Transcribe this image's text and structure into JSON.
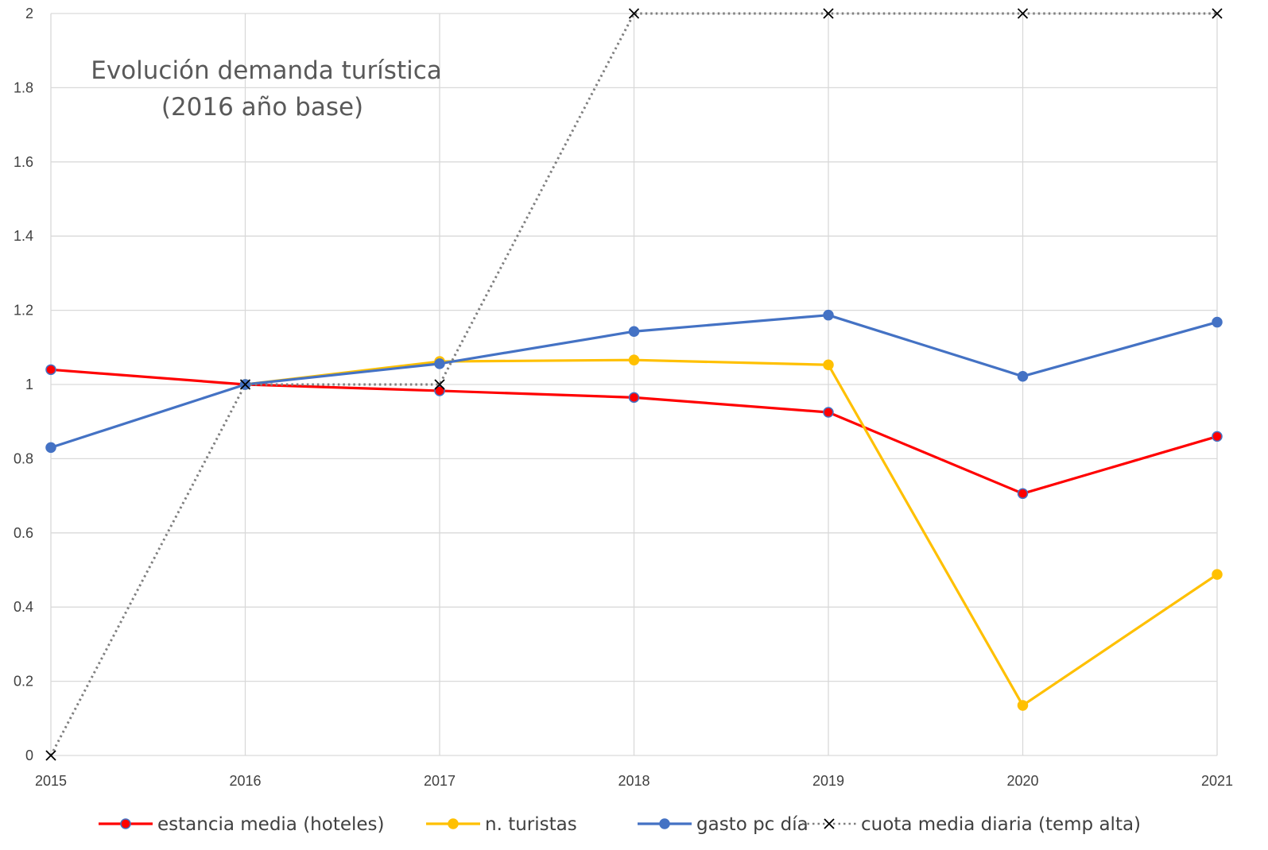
{
  "chart_data": {
    "type": "line",
    "title_lines": [
      "Evolución demanda turística",
      "(2016 año base)"
    ],
    "x": [
      "2015",
      "2016",
      "2017",
      "2018",
      "2019",
      "2020",
      "2021"
    ],
    "yticks": [
      "0",
      "0.2",
      "0.4",
      "0.6",
      "0.8",
      "1",
      "1.2",
      "1.4",
      "1.6",
      "1.8",
      "2"
    ],
    "ylim": [
      0,
      2
    ],
    "grid": true,
    "legend_position": "bottom",
    "series": [
      {
        "name": "estancia media (hoteles)",
        "color": "#ff0000",
        "marker": "circle",
        "marker_fill": "#ff0000",
        "marker_stroke": "#4472c4",
        "dash": "solid",
        "values": [
          1.04,
          1.0,
          0.983,
          0.965,
          0.925,
          0.706,
          0.86
        ]
      },
      {
        "name": "n. turistas",
        "color": "#ffc000",
        "marker": "circle",
        "marker_fill": "#ffc000",
        "marker_stroke": "#ffc000",
        "dash": "solid",
        "values": [
          null,
          1.0,
          1.062,
          1.066,
          1.053,
          0.135,
          0.488
        ]
      },
      {
        "name": "gasto pc día",
        "color": "#4472c4",
        "marker": "circle",
        "marker_fill": "#4472c4",
        "marker_stroke": "#4472c4",
        "dash": "solid",
        "values": [
          0.83,
          1.0,
          1.056,
          1.143,
          1.187,
          1.022,
          1.168
        ]
      },
      {
        "name": "cuota media diaria (temp alta)",
        "color": "#7f7f7f",
        "marker": "x",
        "marker_fill": "none",
        "marker_stroke": "#000000",
        "dash": "dotted",
        "values": [
          0,
          1.0,
          1.0,
          2.0,
          2.0,
          2.0,
          2.0
        ]
      }
    ]
  }
}
